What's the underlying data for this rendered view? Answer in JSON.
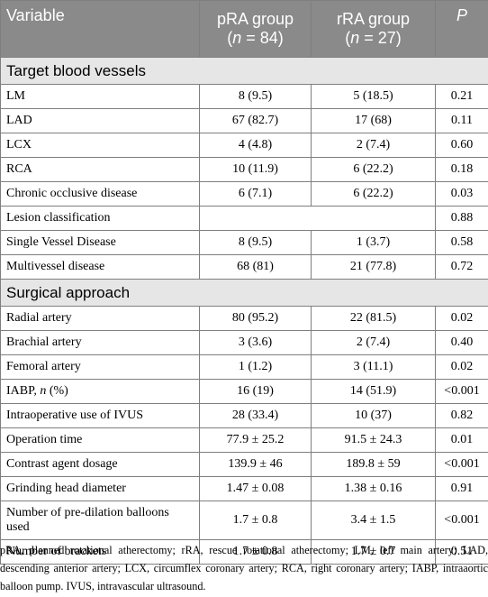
{
  "header": {
    "variable": "Variable",
    "pra_line1": "pRA group",
    "pra_n_open": "(",
    "pra_n_sym": "n",
    "pra_n_rest": " = 84)",
    "rra_line1": "rRA group",
    "rra_n_open": "(",
    "rra_n_sym": "n",
    "rra_n_rest": " = 27)",
    "p": "P"
  },
  "sections": [
    {
      "title": "Target blood vessels",
      "rows": [
        {
          "variable": "LM",
          "pra": "8 (9.5)",
          "rra": "5 (18.5)",
          "p": "0.21"
        },
        {
          "variable": "LAD",
          "pra": "67 (82.7)",
          "rra": "17 (68)",
          "p": "0.11"
        },
        {
          "variable": "LCX",
          "pra": "4 (4.8)",
          "rra": "2 (7.4)",
          "p": "0.60"
        },
        {
          "variable": "RCA",
          "pra": "10 (11.9)",
          "rra": "6 (22.2)",
          "p": "0.18"
        },
        {
          "variable": "Chronic occlusive disease",
          "pra": "6 (7.1)",
          "rra": "6 (22.2)",
          "p": "0.03"
        },
        {
          "variable": "Lesion classification",
          "pra": "",
          "rra": "",
          "p": "0.88"
        },
        {
          "variable": "Single Vessel Disease",
          "pra": "8 (9.5)",
          "rra": "1 (3.7)",
          "p": "0.58"
        },
        {
          "variable": "Multivessel disease",
          "pra": "68 (81)",
          "rra": "21 (77.8)",
          "p": "0.72"
        }
      ]
    },
    {
      "title": "Surgical approach",
      "rows": [
        {
          "variable": "Radial artery",
          "pra": "80 (95.2)",
          "rra": "22 (81.5)",
          "p": "0.02"
        },
        {
          "variable": "Brachial artery",
          "pra": "3 (3.6)",
          "rra": "2 (7.4)",
          "p": "0.40"
        },
        {
          "variable": "Femoral artery",
          "pra": "1 (1.2)",
          "rra": "3 (11.1)",
          "p": "0.02"
        },
        {
          "variable": "IABP, ",
          "variable_italic": "n",
          "variable_tail": " (%)",
          "pra": "16 (19)",
          "rra": "14 (51.9)",
          "p": "<0.001"
        },
        {
          "variable": "Intraoperative use of IVUS",
          "pra": "28 (33.4)",
          "rra": "10 (37)",
          "p": "0.82"
        },
        {
          "variable": "Operation time",
          "pra": "77.9 ± 25.2",
          "rra": "91.5 ± 24.3",
          "p": "0.01"
        },
        {
          "variable": "Contrast agent dosage",
          "pra": "139.9 ± 46",
          "rra": "189.8 ± 59",
          "p": "<0.001"
        },
        {
          "variable": "Grinding head diameter",
          "pra": "1.47 ± 0.08",
          "rra": "1.38 ± 0.16",
          "p": "0.91"
        },
        {
          "variable": "Number of pre-dilation balloons used",
          "pra": "1.7 ± 0.8",
          "rra": "3.4 ± 1.5",
          "p": "<0.001"
        },
        {
          "variable": "Number of brackets",
          "pra": "1.7 ± 0.8",
          "rra": "1.7 ± 0.7",
          "p": "0.51"
        }
      ]
    }
  ],
  "footnote": "pRA, planned rotational atherectomy; rRA, rescue rotational atherectomy; LM, left main artery; LAD, descending anterior artery; LCX, circumflex coronary artery; RCA, right coronary artery; IABP, intraaortic balloon pump. IVUS, intravascular ultrasound."
}
